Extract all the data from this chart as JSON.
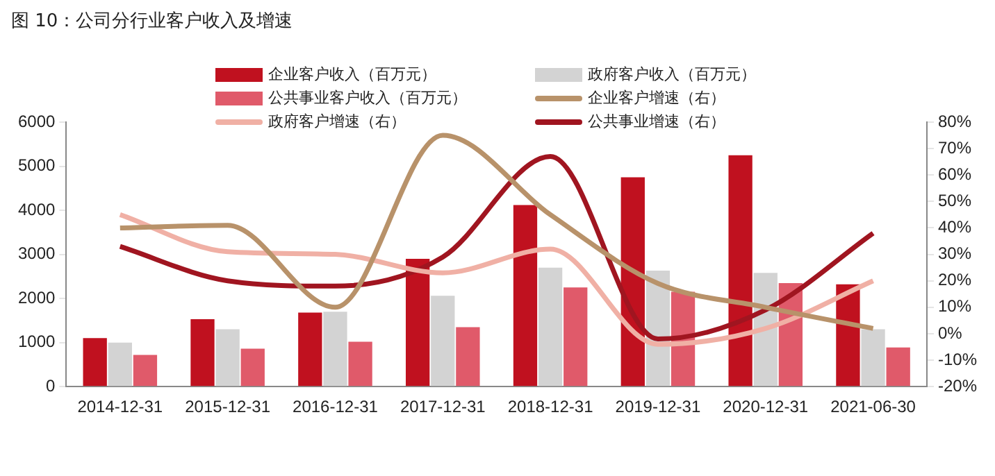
{
  "chart_data": {
    "type": "bar",
    "title": "图 10：公司分行业客户收入及增速",
    "categories": [
      "2014-12-31",
      "2015-12-31",
      "2016-12-31",
      "2017-12-31",
      "2018-12-31",
      "2019-12-31",
      "2020-12-31",
      "2021-06-30"
    ],
    "series": [
      {
        "name": "企业客户收入（百万元）",
        "color": "#c0111f",
        "values": [
          1100,
          1530,
          1680,
          2900,
          4120,
          4750,
          5250,
          2320
        ]
      },
      {
        "name": "政府客户收入（百万元）",
        "color": "#d3d3d3",
        "values": [
          1000,
          1300,
          1700,
          2060,
          2700,
          2630,
          2580,
          1300
        ]
      },
      {
        "name": "公共事业客户收入（百万元）",
        "color": "#e05a6a",
        "values": [
          720,
          860,
          1020,
          1350,
          2250,
          2150,
          2350,
          890
        ]
      },
      {
        "name": "企业客户增速（右）",
        "type": "line",
        "axis": "y2",
        "color": "#b8926a",
        "values": [
          40,
          41,
          10,
          75,
          45,
          19,
          10,
          2
        ]
      },
      {
        "name": "政府客户增速（右）",
        "type": "line",
        "axis": "y2",
        "color": "#f0b0a5",
        "values": [
          45,
          31,
          30,
          23,
          32,
          -4,
          2,
          20
        ]
      },
      {
        "name": "公共事业增速（右）",
        "type": "line",
        "axis": "y2",
        "color": "#a01520",
        "values": [
          33,
          20,
          18,
          29,
          67,
          -2,
          9,
          38
        ]
      }
    ],
    "ylim": [
      0,
      6000
    ],
    "yticks": [
      0,
      1000,
      2000,
      3000,
      4000,
      5000,
      6000
    ],
    "y2lim": [
      -20,
      80
    ],
    "y2ticks": [
      {
        "value": -20,
        "label": "-20%"
      },
      {
        "value": -10,
        "label": "-10%"
      },
      {
        "value": 0,
        "label": "0%"
      },
      {
        "value": 10,
        "label": "10%"
      },
      {
        "value": 20,
        "label": "20%"
      },
      {
        "value": 30,
        "label": "30%"
      },
      {
        "value": 40,
        "label": "40%"
      },
      {
        "value": 50,
        "label": "50%"
      },
      {
        "value": 60,
        "label": "60%"
      },
      {
        "value": 70,
        "label": "70%"
      },
      {
        "value": 80,
        "label": "80%"
      }
    ],
    "grid": false,
    "legend": "top",
    "marker": "none",
    "line_style": "solid"
  }
}
